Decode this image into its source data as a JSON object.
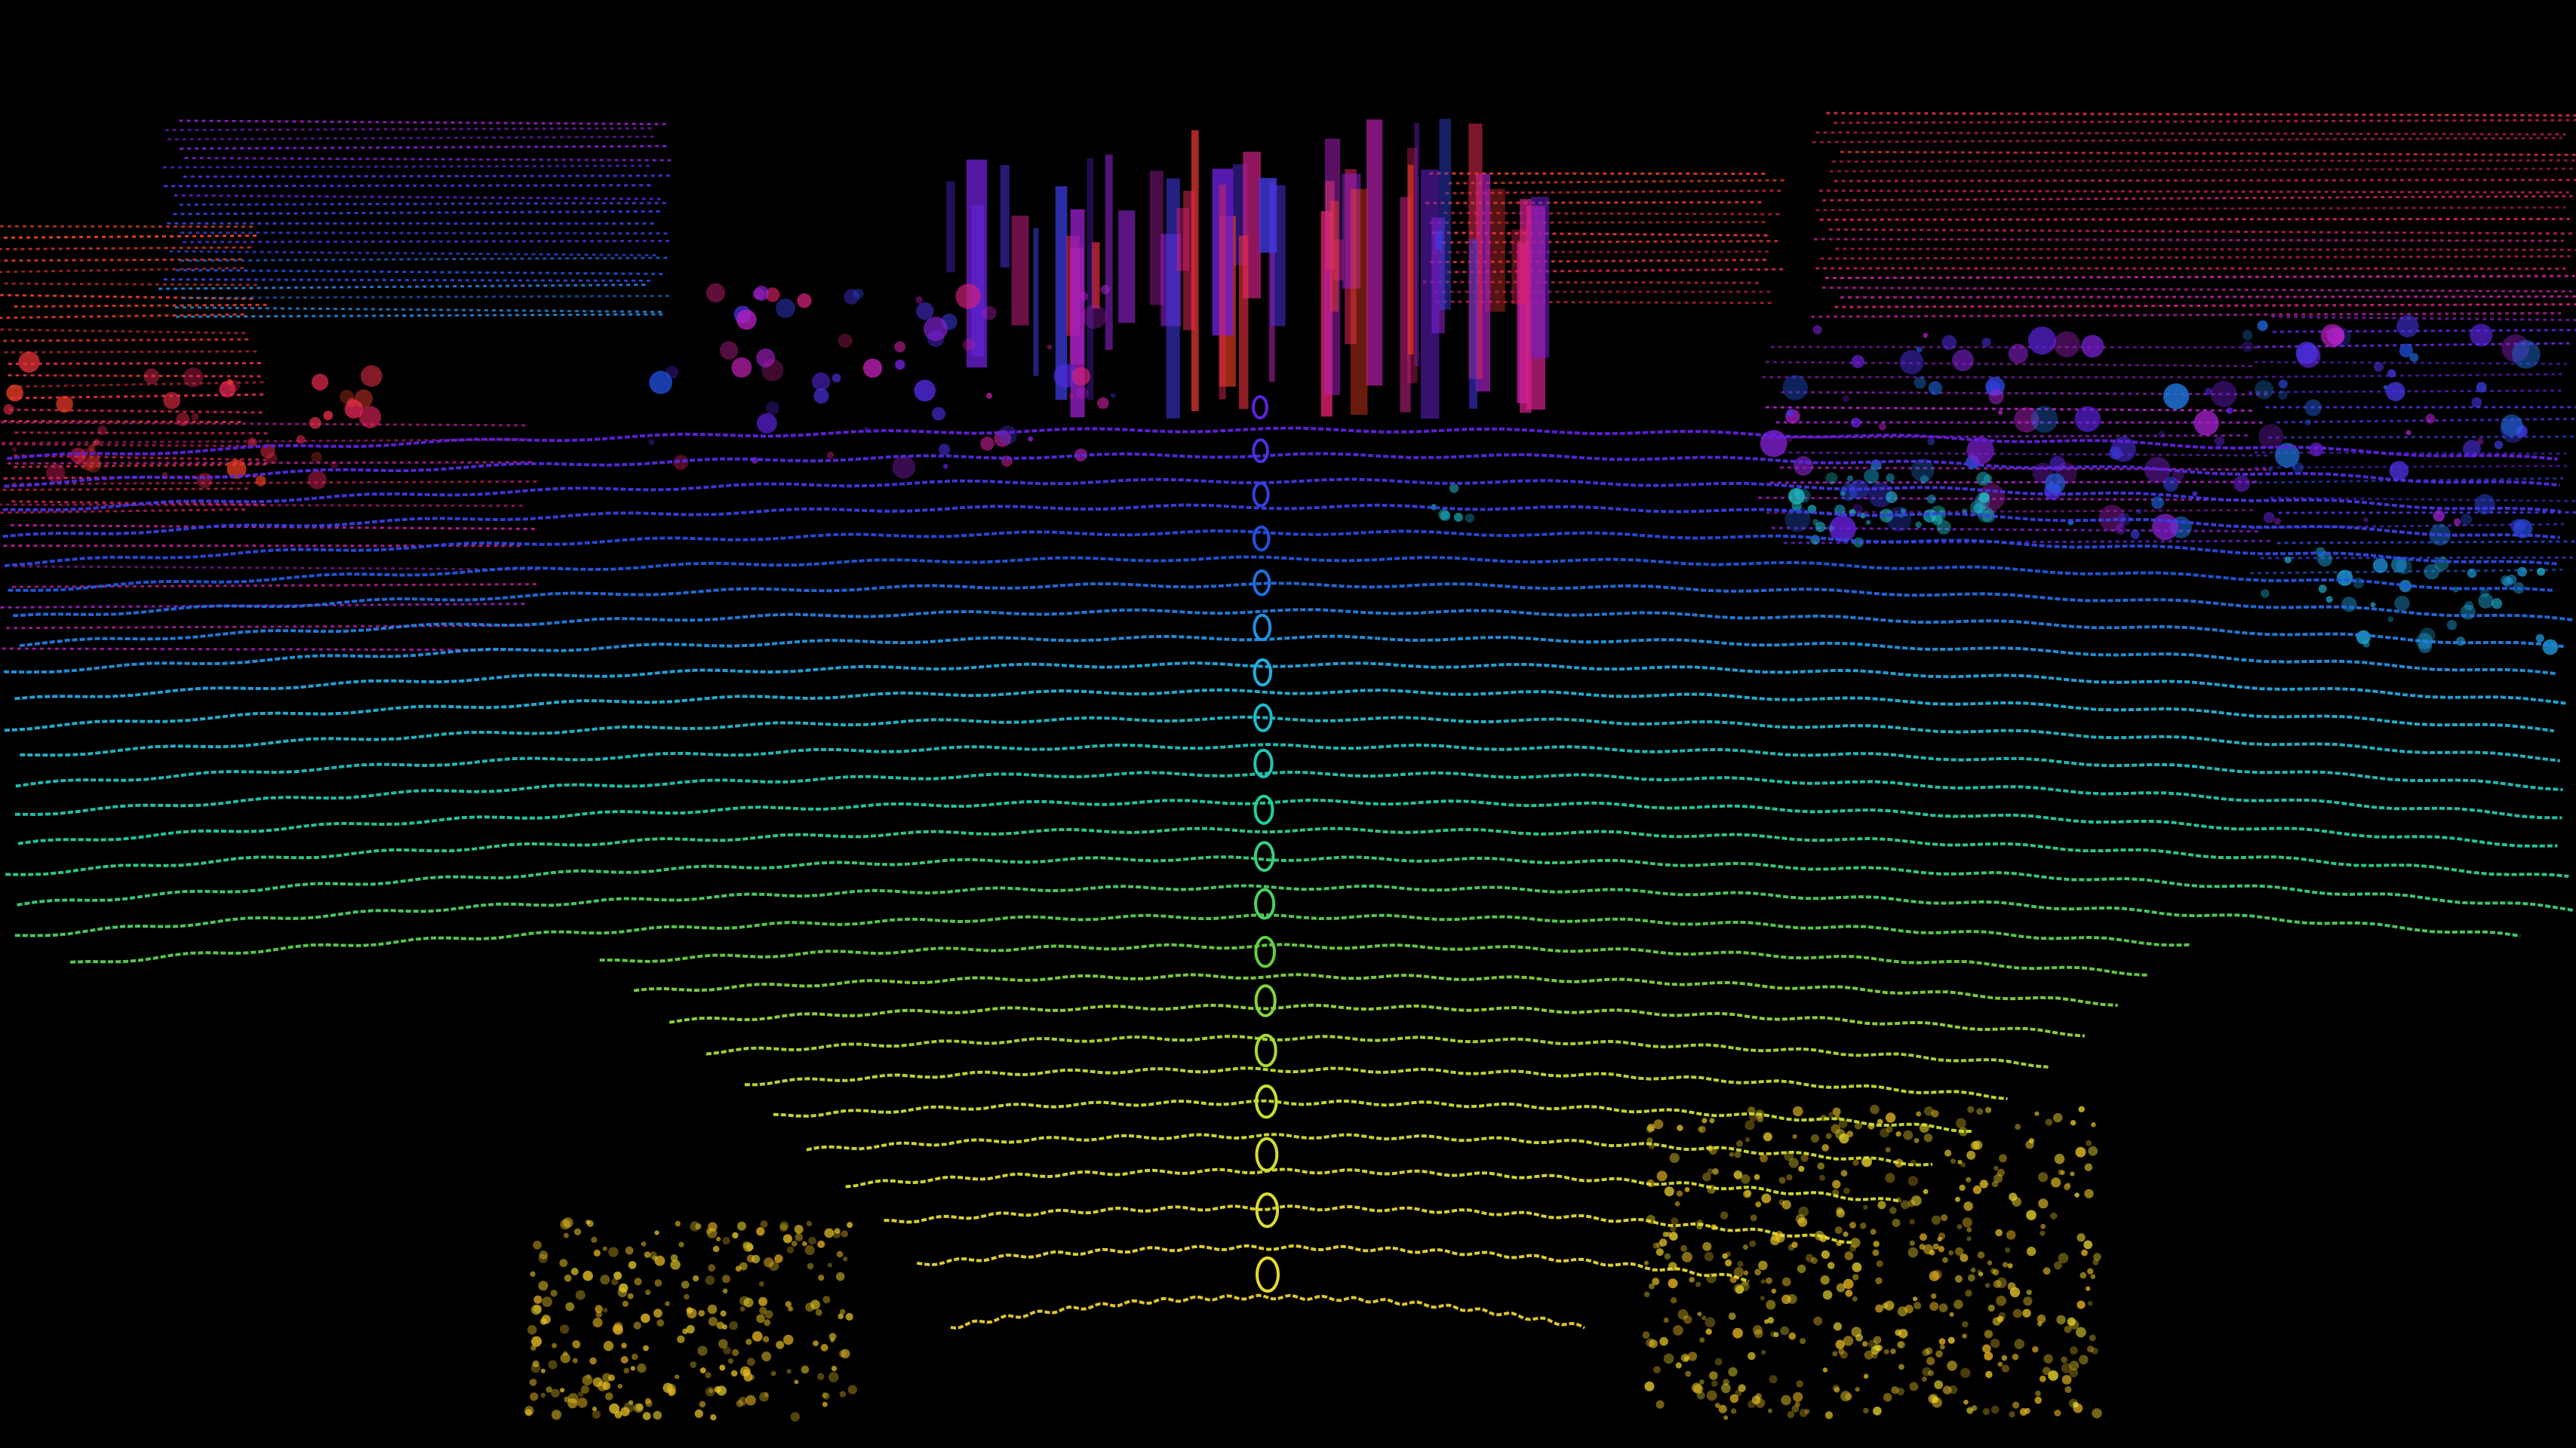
{
  "scene": {
    "kind": "lidar point cloud visualization",
    "background_color": "#000000",
    "color_ramp_near_to_far": [
      "#e8b020",
      "#e8d830",
      "#c8e030",
      "#60d040",
      "#20d0a0",
      "#20b0e0",
      "#2050e0",
      "#6020e0",
      "#c020c0",
      "#e02060",
      "#f04020"
    ],
    "icons": [
      "ego-vehicle-trail-icon",
      "ground-scan-rings",
      "building-points",
      "tree-points",
      "parked-car-points",
      "pedestrian-points"
    ]
  }
}
